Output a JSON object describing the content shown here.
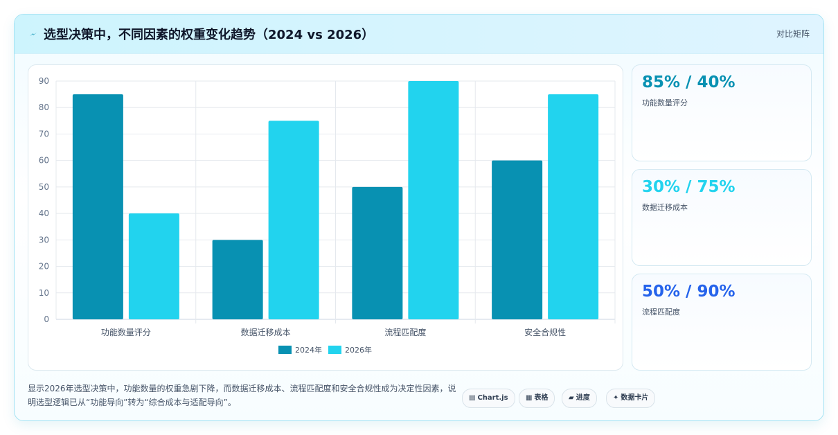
{
  "header": {
    "title": "选型决策中，不同因素的权重变化趋势（2024 vs 2026）",
    "right_label": "对比矩阵"
  },
  "colors": {
    "series_2024": "#0891b2",
    "series_2026": "#22d3ee",
    "stat1": "#0891b2",
    "stat2": "#22d3ee",
    "stat3": "#2563eb"
  },
  "chart_data": {
    "type": "bar",
    "categories": [
      "功能数量评分",
      "数据迁移成本",
      "流程匹配度",
      "安全合规性"
    ],
    "series": [
      {
        "name": "2024年",
        "values": [
          85,
          30,
          50,
          60
        ]
      },
      {
        "name": "2026年",
        "values": [
          40,
          75,
          90,
          85
        ]
      }
    ],
    "ylim": [
      0,
      90
    ],
    "yticks": [
      0,
      10,
      20,
      30,
      40,
      50,
      60,
      70,
      80,
      90
    ],
    "grid": true,
    "legend": "bottom-center"
  },
  "stats": [
    {
      "value": "85% / 40%",
      "label": "功能数量评分"
    },
    {
      "value": "30% / 75%",
      "label": "数据迁移成本"
    },
    {
      "value": "50% / 90%",
      "label": "流程匹配度"
    }
  ],
  "footer": {
    "text": "显示2026年选型决策中，功能数量的权重急剧下降，而数据迁移成本、流程匹配度和安全合规性成为决定性因素，说明选型逻辑已从“功能导向”转为“综合成本与适配导向”。",
    "tags": [
      {
        "icon": "▤",
        "icon_name": "chart-icon",
        "label": "Chart.js"
      },
      {
        "icon": "▦",
        "icon_name": "table-icon",
        "label": "表格"
      },
      {
        "icon": "▰",
        "icon_name": "progress-icon",
        "label": "进度"
      },
      {
        "icon": "✦",
        "icon_name": "sparkle-icon",
        "label": "数据卡片"
      }
    ]
  }
}
